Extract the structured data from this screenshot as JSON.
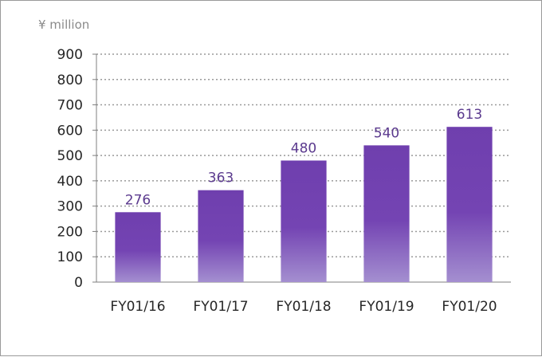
{
  "chart_data": {
    "type": "bar",
    "unit_label": "¥ million",
    "categories": [
      "FY01/16",
      "FY01/17",
      "FY01/18",
      "FY01/19",
      "FY01/20"
    ],
    "values": [
      276,
      363,
      480,
      540,
      613
    ],
    "data_labels": [
      "276",
      "363",
      "480",
      "540",
      "613"
    ],
    "ylim": [
      0,
      900
    ],
    "yticks": [
      "0",
      "100",
      "200",
      "300",
      "400",
      "500",
      "600",
      "700",
      "800",
      "900"
    ],
    "grid": true,
    "bar_color_top": "#6f3fae",
    "bar_color_bottom": "#a48fd0",
    "label_color": "#5b3a8e"
  }
}
